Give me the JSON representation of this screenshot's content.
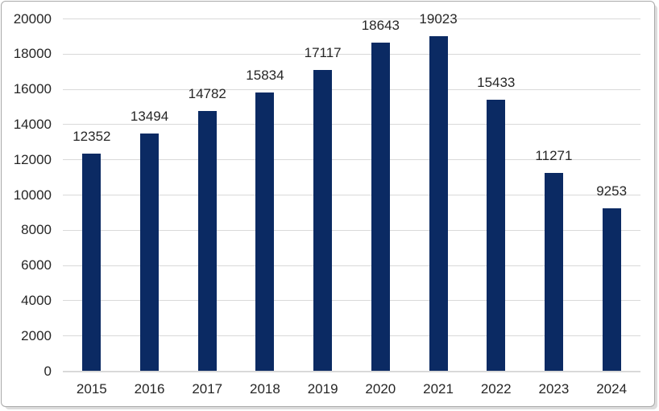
{
  "chart_data": {
    "type": "bar",
    "categories": [
      "2015",
      "2016",
      "2017",
      "2018",
      "2019",
      "2020",
      "2021",
      "2022",
      "2023",
      "2024"
    ],
    "values": [
      12352,
      13494,
      14782,
      15834,
      17117,
      18643,
      19023,
      15433,
      11271,
      9253
    ],
    "title": "",
    "xlabel": "",
    "ylabel": "",
    "ylim": [
      0,
      20000
    ],
    "ytick_interval": 2000,
    "yticks": [
      0,
      2000,
      4000,
      6000,
      8000,
      10000,
      12000,
      14000,
      16000,
      18000,
      20000
    ],
    "grid": true,
    "legend": false,
    "data_labels_shown": true,
    "colors": {
      "bar": "#0b2a63",
      "gridline": "#d9d9d9",
      "axis_line": "#d9d9d9",
      "text": "#262626",
      "frame_border": "#a9a9a9",
      "background": "#ffffff"
    }
  }
}
